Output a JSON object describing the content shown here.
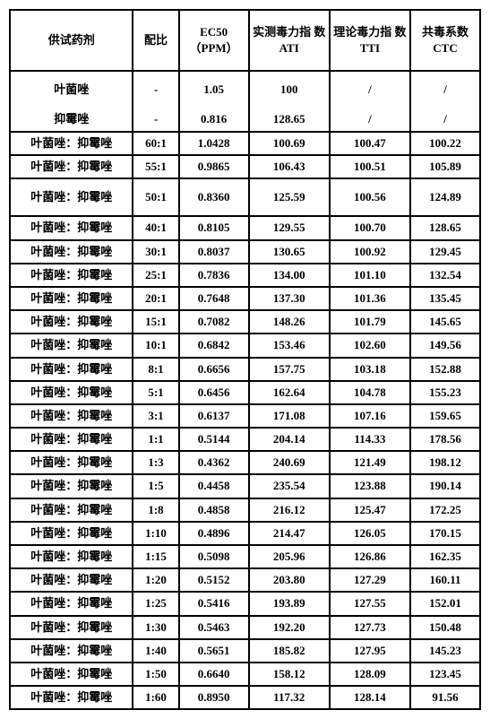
{
  "headers": {
    "agent": "供试药剂",
    "ratio": "配比",
    "ec50": "EC50\n（PPM）",
    "ati": "实测毒力指\n数 ATI",
    "tti": "理论毒力指\n数 TTI",
    "ctc": "共毒系数\nCTC"
  },
  "rows": [
    {
      "agent": "叶菌唑",
      "ratio": "-",
      "ec50": "1.05",
      "ati": "100",
      "tti": "/",
      "ctc": "/",
      "tall": true
    },
    {
      "agent": "抑霉唑",
      "ratio": "-",
      "ec50": "0.816",
      "ati": "128.65",
      "tti": "/",
      "ctc": "/",
      "noborder": true
    },
    {
      "agent": "叶菌唑：抑霉唑",
      "ratio": "60:1",
      "ec50": "1.0428",
      "ati": "100.69",
      "tti": "100.47",
      "ctc": "100.22"
    },
    {
      "agent": "叶菌唑：抑霉唑",
      "ratio": "55:1",
      "ec50": "0.9865",
      "ati": "106.43",
      "tti": "100.51",
      "ctc": "105.89"
    },
    {
      "agent": "叶菌唑：抑霉唑",
      "ratio": "50:1",
      "ec50": "0.8360",
      "ati": "125.59",
      "tti": "100.56",
      "ctc": "124.89",
      "tall": true
    },
    {
      "agent": "叶菌唑：抑霉唑",
      "ratio": "40:1",
      "ec50": "0.8105",
      "ati": "129.55",
      "tti": "100.70",
      "ctc": "128.65"
    },
    {
      "agent": "叶菌唑：抑霉唑",
      "ratio": "30:1",
      "ec50": "0.8037",
      "ati": "130.65",
      "tti": "100.92",
      "ctc": "129.45"
    },
    {
      "agent": "叶菌唑：抑霉唑",
      "ratio": "25:1",
      "ec50": "0.7836",
      "ati": "134.00",
      "tti": "101.10",
      "ctc": "132.54"
    },
    {
      "agent": "叶菌唑：抑霉唑",
      "ratio": "20:1",
      "ec50": "0.7648",
      "ati": "137.30",
      "tti": "101.36",
      "ctc": "135.45"
    },
    {
      "agent": "叶菌唑：抑霉唑",
      "ratio": "15:1",
      "ec50": "0.7082",
      "ati": "148.26",
      "tti": "101.79",
      "ctc": "145.65"
    },
    {
      "agent": "叶菌唑：抑霉唑",
      "ratio": "10:1",
      "ec50": "0.6842",
      "ati": "153.46",
      "tti": "102.60",
      "ctc": "149.56"
    },
    {
      "agent": "叶菌唑：抑霉唑",
      "ratio": "8:1",
      "ec50": "0.6656",
      "ati": "157.75",
      "tti": "103.18",
      "ctc": "152.88"
    },
    {
      "agent": "叶菌唑：抑霉唑",
      "ratio": "5:1",
      "ec50": "0.6456",
      "ati": "162.64",
      "tti": "104.78",
      "ctc": "155.23"
    },
    {
      "agent": "叶菌唑：抑霉唑",
      "ratio": "3:1",
      "ec50": "0.6137",
      "ati": "171.08",
      "tti": "107.16",
      "ctc": "159.65"
    },
    {
      "agent": "叶菌唑：抑霉唑",
      "ratio": "1:1",
      "ec50": "0.5144",
      "ati": "204.14",
      "tti": "114.33",
      "ctc": "178.56"
    },
    {
      "agent": "叶菌唑：抑霉唑",
      "ratio": "1:3",
      "ec50": "0.4362",
      "ati": "240.69",
      "tti": "121.49",
      "ctc": "198.12"
    },
    {
      "agent": "叶菌唑：抑霉唑",
      "ratio": "1:5",
      "ec50": "0.4458",
      "ati": "235.54",
      "tti": "123.88",
      "ctc": "190.14"
    },
    {
      "agent": "叶菌唑：抑霉唑",
      "ratio": "1:8",
      "ec50": "0.4858",
      "ati": "216.12",
      "tti": "125.47",
      "ctc": "172.25"
    },
    {
      "agent": "叶菌唑：抑霉唑",
      "ratio": "1:10",
      "ec50": "0.4896",
      "ati": "214.47",
      "tti": "126.05",
      "ctc": "170.15"
    },
    {
      "agent": "叶菌唑：抑霉唑",
      "ratio": "1:15",
      "ec50": "0.5098",
      "ati": "205.96",
      "tti": "126.86",
      "ctc": "162.35"
    },
    {
      "agent": "叶菌唑：抑霉唑",
      "ratio": "1:20",
      "ec50": "0.5152",
      "ati": "203.80",
      "tti": "127.29",
      "ctc": "160.11"
    },
    {
      "agent": "叶菌唑：抑霉唑",
      "ratio": "1:25",
      "ec50": "0.5416",
      "ati": "193.89",
      "tti": "127.55",
      "ctc": "152.01"
    },
    {
      "agent": "叶菌唑：抑霉唑",
      "ratio": "1:30",
      "ec50": "0.5463",
      "ati": "192.20",
      "tti": "127.73",
      "ctc": "150.48"
    },
    {
      "agent": "叶菌唑：抑霉唑",
      "ratio": "1:40",
      "ec50": "0.5651",
      "ati": "185.82",
      "tti": "127.95",
      "ctc": "145.23"
    },
    {
      "agent": "叶菌唑：抑霉唑",
      "ratio": "1:50",
      "ec50": "0.6640",
      "ati": "158.12",
      "tti": "128.09",
      "ctc": "123.45"
    },
    {
      "agent": "叶菌唑：抑霉唑",
      "ratio": "1:60",
      "ec50": "0.8950",
      "ati": "117.32",
      "tti": "128.14",
      "ctc": "91.56"
    }
  ]
}
